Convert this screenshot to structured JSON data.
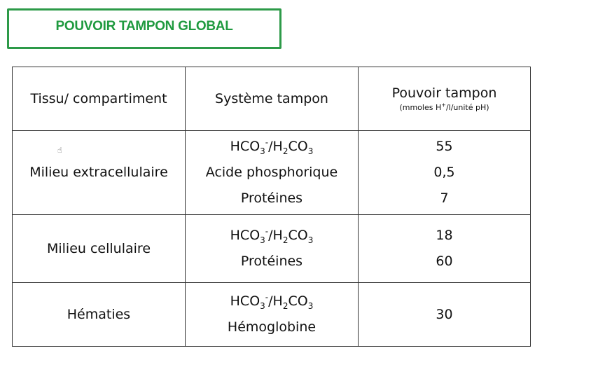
{
  "title": "POUVOIR TAMPON GLOBAL",
  "colors": {
    "title": "#1f9a3f",
    "border": "#2d9a48"
  },
  "table": {
    "headers": [
      "Tissu/ compartiment",
      "Système tampon",
      "Pouvoir tampon"
    ],
    "header_unit": {
      "pre": "(mmoles H",
      "sup": "+",
      "post": "/l/unité pH)"
    },
    "formula": {
      "a": "HCO",
      "a_sub": "3",
      "a_sup": "-",
      "b": "/H",
      "b_sub": "2",
      "c": "CO",
      "c_sub": "3"
    },
    "rows": [
      {
        "tissue": "Milieu extracellulaire",
        "systems": [
          "Acide phosphorique",
          "Protéines"
        ],
        "values": [
          "55",
          "0,5",
          "7"
        ]
      },
      {
        "tissue": "Milieu cellulaire",
        "systems": [
          "Protéines"
        ],
        "values": [
          "18",
          "60"
        ]
      },
      {
        "tissue": "Hématies",
        "systems": [
          "Hémoglobine"
        ],
        "values": [
          "30"
        ]
      }
    ]
  }
}
